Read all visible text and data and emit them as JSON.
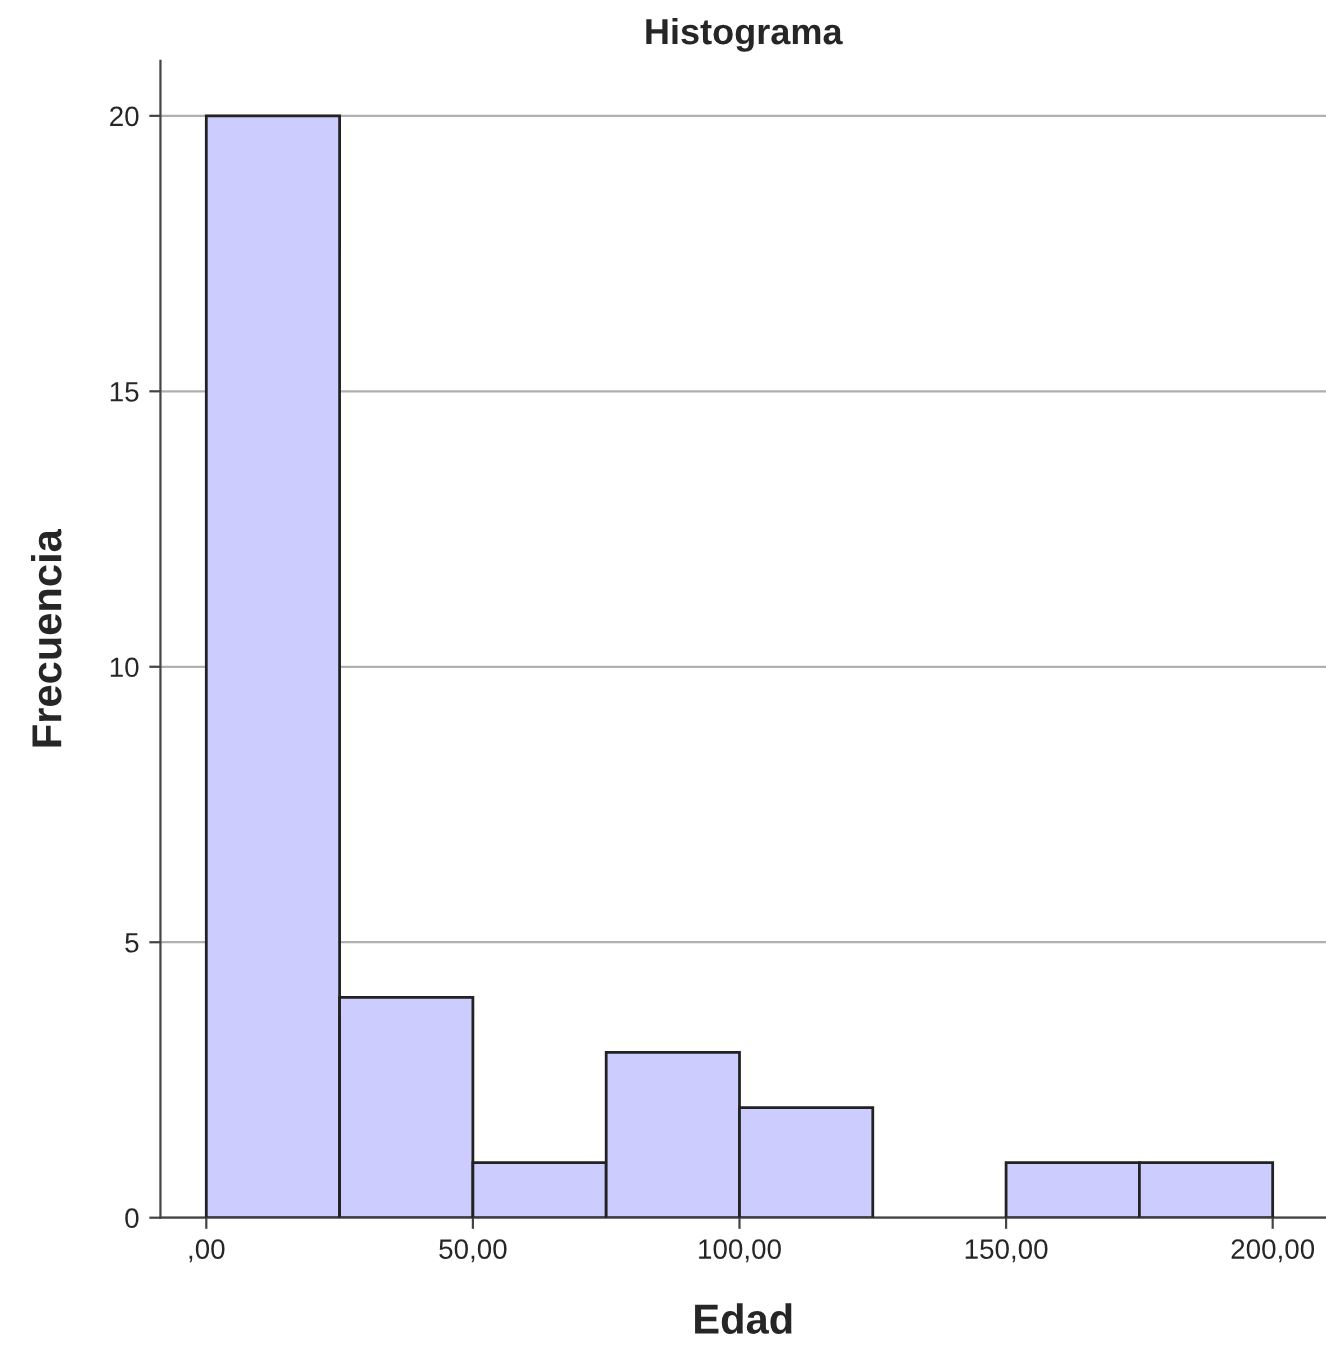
{
  "chart_data": {
    "type": "histogram",
    "title": "Histograma",
    "xlabel": "Edad",
    "ylabel": "Frecuencia",
    "bins": [
      0,
      25,
      50,
      75,
      100,
      125,
      150,
      175,
      200
    ],
    "values": [
      20,
      4,
      1,
      3,
      2,
      0,
      1,
      1
    ],
    "color": "#ccccff",
    "xlim": [
      -8.6,
      210
    ],
    "ylim": [
      0,
      21
    ],
    "xticks": [
      {
        "value": 0,
        "label": ",00"
      },
      {
        "value": 50,
        "label": "50,00"
      },
      {
        "value": 100,
        "label": "100,00"
      },
      {
        "value": 150,
        "label": "150,00"
      },
      {
        "value": 200,
        "label": "200,00"
      }
    ],
    "yticks": [
      0,
      5,
      10,
      15,
      20
    ],
    "grid": "y",
    "legend": false
  }
}
